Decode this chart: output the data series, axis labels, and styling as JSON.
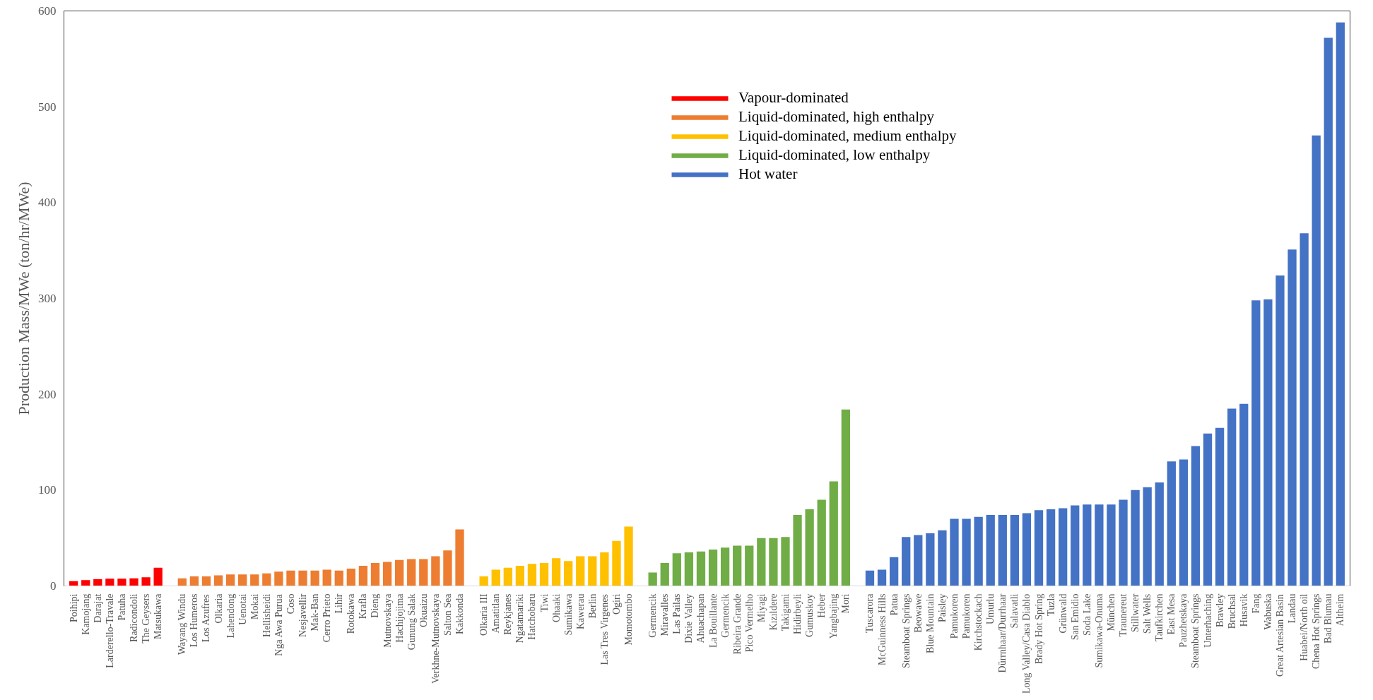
{
  "chart_data": {
    "type": "bar",
    "ylabel": "Production Mass/MWe (ton/hr/MWe)",
    "categories": [
      "Poihipi",
      "Kamojang",
      "Darajat",
      "Larderello-Travale",
      "Patuha",
      "Radicondoli",
      "The Geysers",
      "Matsukawa",
      null,
      "Wayang Windu",
      "Los Humeros",
      "Los Azufres",
      "Olkaria",
      "Lahendong",
      "Uenotai",
      "Mokai",
      "Hellisheidi",
      "Nga Awa Purua",
      "Coso",
      "Nesjavellir",
      "Mak-Ban",
      "Cerro Prieto",
      "Lihir",
      "Rotokawa",
      "Krafla",
      "Dieng",
      "Mutnovskaya",
      "Hachijojima",
      "Gunung Salak",
      "Okuaizu",
      "Verkhne-Mutnovskaya",
      "Salton Sea",
      "Kakkonda",
      null,
      "Olkaria III",
      "Amatitlan",
      "Reykjanes",
      "Ngatamariki",
      "Hatchobaru",
      "Tiwi",
      "Ohaaki",
      "Sumikawa",
      "Kawerau",
      "Berlin",
      "Las Tres Virgenes",
      "Ogiri",
      "Momotombo",
      null,
      "Germencik",
      "Miravalles",
      "Las Pailas",
      "Dixie Valley",
      "Ahuachapan",
      "La Bouillante",
      "Germencik",
      "Ribeira Grande",
      "Pico Vermelho",
      "Miyagi",
      "Kızıldere",
      "Takigami",
      "Hidirbeyli",
      "Gumuskoy",
      "Heber",
      "Yangbajing",
      "Mori",
      null,
      "Tuscarora",
      "McGuinness Hills",
      "Patua",
      "Steamboat Springs",
      "Beowawe",
      "Blue Mountain",
      "Paisley",
      "Pamukoren",
      "Pamukoren",
      "Kirchstockach",
      "Umurlu",
      "Dürrnhaar/Durrhaar",
      "Salavatli",
      "Long Valley/Casa Diablo",
      "Brady Hot Spring",
      "Tuzla",
      "Grünwald",
      "San Emidio",
      "Soda Lake",
      "Sumikawa-Onuma",
      "München",
      "Traunereut",
      "Stillwater",
      "Salt Wells",
      "Taufkirchen",
      "East Mesa",
      "Pauzhetskaya",
      "Steamboat Springs",
      "Unterhaching",
      "Brawley",
      "Bruchsal",
      "Husavik",
      "Fang",
      "Wabuska",
      "Great Artesian Basin",
      "Landau",
      "Huabei/North oil",
      "Chena Hot Springs",
      "Bad Blumau",
      "Altheim"
    ],
    "series": [
      {
        "name": "Vapour-dominated",
        "color": "#ff0000",
        "values": [
          5,
          6,
          7,
          7.5,
          7.5,
          8,
          9,
          19,
          null,
          null,
          null,
          null,
          null,
          null,
          null,
          null,
          null,
          null,
          null,
          null,
          null,
          null,
          null,
          null,
          null,
          null,
          null,
          null,
          null,
          null,
          null,
          null,
          null,
          null,
          null,
          null,
          null,
          null,
          null,
          null,
          null,
          null,
          null,
          null,
          null,
          null,
          null,
          null,
          null,
          null,
          null,
          null,
          null,
          null,
          null,
          null,
          null,
          null,
          null,
          null,
          null,
          null,
          null,
          null,
          null,
          null,
          null,
          null,
          null,
          null,
          null,
          null,
          null,
          null,
          null,
          null,
          null,
          null,
          null,
          null,
          null,
          null,
          null,
          null,
          null,
          null,
          null,
          null,
          null,
          null,
          null,
          null,
          null,
          null,
          null,
          null,
          null,
          null,
          null,
          null,
          null,
          null,
          null,
          null,
          null,
          null
        ]
      },
      {
        "name": "Liquid-dominated, high enthalpy",
        "color": "#ed7d31",
        "values": [
          null,
          null,
          null,
          null,
          null,
          null,
          null,
          null,
          null,
          8,
          10,
          10,
          11,
          12,
          12,
          12,
          13,
          15,
          16,
          16,
          16,
          17,
          16,
          18,
          21,
          24,
          25,
          27,
          28,
          28,
          31,
          37,
          59,
          null,
          null,
          null,
          null,
          null,
          null,
          null,
          null,
          null,
          null,
          null,
          null,
          null,
          null,
          null,
          null,
          null,
          null,
          null,
          null,
          null,
          null,
          null,
          null,
          null,
          null,
          null,
          null,
          null,
          null,
          null,
          null,
          null,
          null,
          null,
          null,
          null,
          null,
          null,
          null,
          null,
          null,
          null,
          null,
          null,
          null,
          null,
          null,
          null,
          null,
          null,
          null,
          null,
          null,
          null,
          null,
          null,
          null,
          null,
          null,
          null,
          null,
          null,
          null,
          null,
          null,
          null,
          null,
          null,
          null,
          null,
          null,
          null
        ]
      },
      {
        "name": "Liquid-dominated, medium enthalpy",
        "color": "#ffc000",
        "values": [
          null,
          null,
          null,
          null,
          null,
          null,
          null,
          null,
          null,
          null,
          null,
          null,
          null,
          null,
          null,
          null,
          null,
          null,
          null,
          null,
          null,
          null,
          null,
          null,
          null,
          null,
          null,
          null,
          null,
          null,
          null,
          null,
          null,
          null,
          10,
          17,
          19,
          21,
          23,
          24,
          29,
          26,
          31,
          31,
          35,
          47,
          62,
          null,
          null,
          null,
          null,
          null,
          null,
          null,
          null,
          null,
          null,
          null,
          null,
          null,
          null,
          null,
          null,
          null,
          null,
          null,
          null,
          null,
          null,
          null,
          null,
          null,
          null,
          null,
          null,
          null,
          null,
          null,
          null,
          null,
          null,
          null,
          null,
          null,
          null,
          null,
          null,
          null,
          null,
          null,
          null,
          null,
          null,
          null,
          null,
          null,
          null,
          null,
          null,
          null,
          null,
          null,
          null,
          null,
          null,
          null
        ]
      },
      {
        "name": "Liquid-dominated, low enthalpy",
        "color": "#70ad47",
        "values": [
          null,
          null,
          null,
          null,
          null,
          null,
          null,
          null,
          null,
          null,
          null,
          null,
          null,
          null,
          null,
          null,
          null,
          null,
          null,
          null,
          null,
          null,
          null,
          null,
          null,
          null,
          null,
          null,
          null,
          null,
          null,
          null,
          null,
          null,
          null,
          null,
          null,
          null,
          null,
          null,
          null,
          null,
          null,
          null,
          null,
          null,
          null,
          null,
          14,
          24,
          34,
          35,
          36,
          38,
          40,
          42,
          42,
          50,
          50,
          51,
          74,
          80,
          90,
          109,
          184,
          null,
          null,
          null,
          null,
          null,
          null,
          null,
          null,
          null,
          null,
          null,
          null,
          null,
          null,
          null,
          null,
          null,
          null,
          null,
          null,
          null,
          null,
          null,
          null,
          null,
          null,
          null,
          null,
          null,
          null,
          null,
          null,
          null,
          null,
          null,
          null,
          null,
          null,
          null,
          null,
          null
        ]
      },
      {
        "name": "Hot water",
        "color": "#4472c4",
        "values": [
          null,
          null,
          null,
          null,
          null,
          null,
          null,
          null,
          null,
          null,
          null,
          null,
          null,
          null,
          null,
          null,
          null,
          null,
          null,
          null,
          null,
          null,
          null,
          null,
          null,
          null,
          null,
          null,
          null,
          null,
          null,
          null,
          null,
          null,
          null,
          null,
          null,
          null,
          null,
          null,
          null,
          null,
          null,
          null,
          null,
          null,
          null,
          null,
          null,
          null,
          null,
          null,
          null,
          null,
          null,
          null,
          null,
          null,
          null,
          null,
          null,
          null,
          null,
          null,
          null,
          null,
          16,
          17,
          30,
          51,
          53,
          55,
          58,
          70,
          70,
          72,
          74,
          74,
          74,
          76,
          79,
          80,
          81,
          84,
          85,
          85,
          85,
          90,
          100,
          103,
          108,
          130,
          132,
          146,
          159,
          165,
          185,
          190,
          298,
          299,
          324,
          351,
          368,
          470,
          572,
          588
        ]
      }
    ],
    "ylim": [
      0,
      600
    ],
    "yticks": [
      0,
      100,
      200,
      300,
      400,
      500,
      600
    ],
    "legend": "top",
    "grid": false
  }
}
